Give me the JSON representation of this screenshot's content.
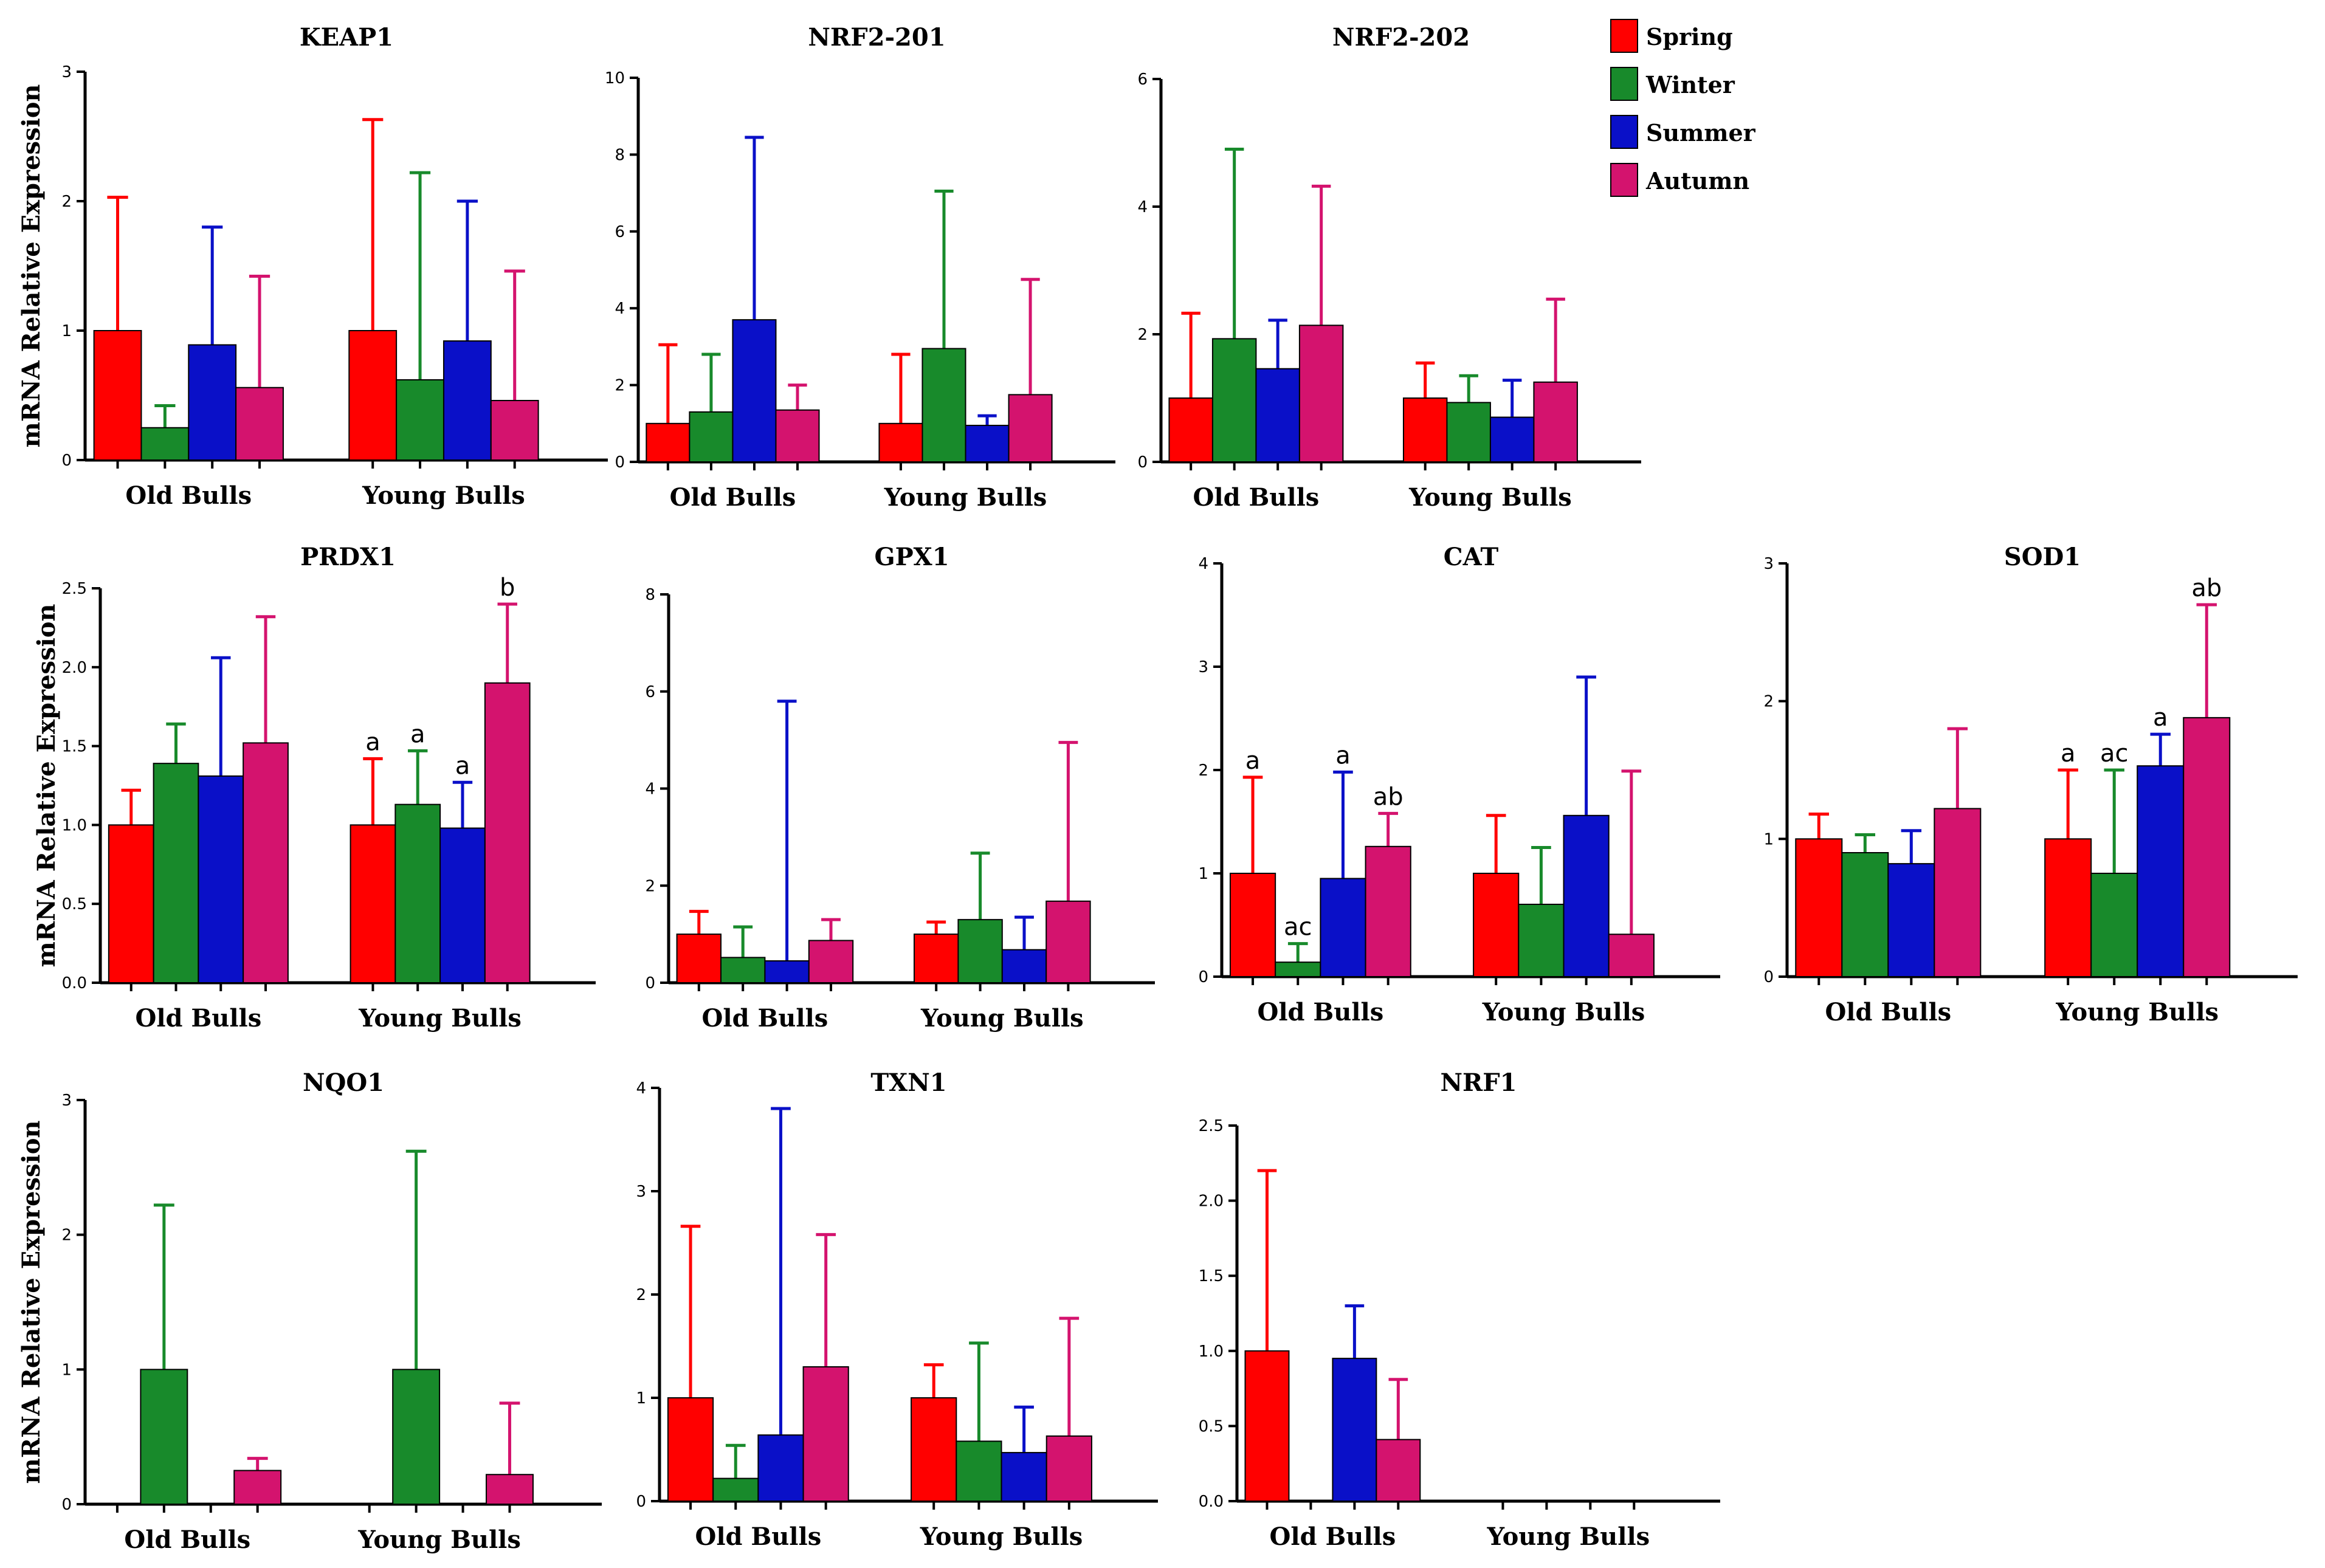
{
  "chart_data": {
    "type": "bar",
    "groups": [
      "Old Bulls",
      "Young Bulls"
    ],
    "legend": [
      {
        "name": "Spring",
        "color": "#ff0000"
      },
      {
        "name": "Winter",
        "color": "#188a2b"
      },
      {
        "name": "Summer",
        "color": "#0a10c8"
      },
      {
        "name": "Autumn",
        "color": "#d4136e"
      }
    ],
    "ylabel": "mRNA Relative Expression",
    "panels": [
      {
        "title": "KEAP1",
        "ylim": [
          0,
          3
        ],
        "ticks": [
          "0",
          "1",
          "2",
          "3"
        ],
        "values": [
          [
            1.0,
            0.25,
            0.89,
            0.56
          ],
          [
            1.0,
            0.62,
            0.92,
            0.46
          ]
        ],
        "errors": [
          [
            2.03,
            0.42,
            1.8,
            1.42
          ],
          [
            2.63,
            2.22,
            2.0,
            1.46
          ]
        ],
        "sig": [
          [
            "",
            "",
            "",
            ""
          ],
          [
            "",
            "",
            "",
            ""
          ]
        ]
      },
      {
        "title": "NRF2-201",
        "ylim": [
          0,
          10
        ],
        "ticks": [
          "0",
          "2",
          "4",
          "6",
          "8",
          "10"
        ],
        "values": [
          [
            1.0,
            1.3,
            3.7,
            1.35
          ],
          [
            1.0,
            2.95,
            0.95,
            1.75
          ]
        ],
        "errors": [
          [
            3.05,
            2.8,
            8.45,
            2.0
          ],
          [
            2.8,
            7.05,
            1.2,
            4.75
          ]
        ],
        "sig": [
          [
            "",
            "",
            "",
            ""
          ],
          [
            "",
            "",
            "",
            ""
          ]
        ]
      },
      {
        "title": "NRF2-202",
        "ylim": [
          0,
          6
        ],
        "ticks": [
          "0",
          "2",
          "4",
          "6"
        ],
        "values": [
          [
            1.0,
            1.93,
            1.46,
            2.14
          ],
          [
            1.0,
            0.93,
            0.7,
            1.25
          ]
        ],
        "errors": [
          [
            2.33,
            4.9,
            2.22,
            4.32
          ],
          [
            1.55,
            1.35,
            1.28,
            2.55
          ]
        ],
        "sig": [
          [
            "",
            "",
            "",
            ""
          ],
          [
            "",
            "",
            "",
            ""
          ]
        ]
      },
      {
        "title": "PRDX1",
        "ylim": [
          0,
          2.5
        ],
        "ticks": [
          "0.0",
          "0.5",
          "1.0",
          "1.5",
          "2.0",
          "2.5"
        ],
        "values": [
          [
            1.0,
            1.39,
            1.31,
            1.52
          ],
          [
            1.0,
            1.13,
            0.98,
            1.9
          ]
        ],
        "errors": [
          [
            1.22,
            1.64,
            2.06,
            2.32
          ],
          [
            1.42,
            1.47,
            1.27,
            2.4
          ]
        ],
        "sig": [
          [
            "",
            "",
            "",
            ""
          ],
          [
            "a",
            "a",
            "a",
            "b"
          ]
        ]
      },
      {
        "title": "GPX1",
        "ylim": [
          0,
          8
        ],
        "ticks": [
          "0",
          "2",
          "4",
          "6",
          "8"
        ],
        "values": [
          [
            1.0,
            0.52,
            0.45,
            0.87
          ],
          [
            1.0,
            1.3,
            0.68,
            1.68
          ]
        ],
        "errors": [
          [
            1.47,
            1.15,
            5.8,
            1.3
          ],
          [
            1.25,
            2.67,
            1.35,
            4.95
          ]
        ],
        "sig": [
          [
            "",
            "",
            "",
            ""
          ],
          [
            "",
            "",
            "",
            ""
          ]
        ]
      },
      {
        "title": "CAT",
        "ylim": [
          0,
          4
        ],
        "ticks": [
          "0",
          "1",
          "2",
          "3",
          "4"
        ],
        "values": [
          [
            1.0,
            0.14,
            0.95,
            1.26
          ],
          [
            1.0,
            0.7,
            1.56,
            0.41
          ]
        ],
        "errors": [
          [
            1.93,
            0.32,
            1.98,
            1.58
          ],
          [
            1.56,
            1.25,
            2.9,
            1.99
          ]
        ],
        "sig": [
          [
            "a",
            "ac",
            "a",
            "ab"
          ],
          [
            "",
            "",
            "",
            ""
          ]
        ]
      },
      {
        "title": "SOD1",
        "ylim": [
          0,
          3
        ],
        "ticks": [
          "0",
          "1",
          "2",
          "3"
        ],
        "values": [
          [
            1.0,
            0.9,
            0.82,
            1.22
          ],
          [
            1.0,
            0.75,
            1.53,
            1.88
          ]
        ],
        "errors": [
          [
            1.18,
            1.03,
            1.06,
            1.8
          ],
          [
            1.5,
            1.5,
            1.76,
            2.7
          ]
        ],
        "sig": [
          [
            "",
            "",
            "",
            ""
          ],
          [
            "a",
            "ac",
            "a",
            "ab"
          ]
        ]
      },
      {
        "title": "NQO1",
        "ylim": [
          0,
          3
        ],
        "ticks": [
          "0",
          "1",
          "2",
          "3"
        ],
        "values": [
          [
            0,
            1.0,
            0,
            0.25
          ],
          [
            0,
            1.0,
            0,
            0.22
          ]
        ],
        "errors": [
          [
            0,
            2.22,
            0,
            0.34
          ],
          [
            0,
            2.62,
            0,
            0.75
          ]
        ],
        "sig": [
          [
            "",
            "",
            "",
            ""
          ],
          [
            "",
            "",
            "",
            ""
          ]
        ]
      },
      {
        "title": "TXN1",
        "ylim": [
          0,
          4
        ],
        "ticks": [
          "0",
          "1",
          "2",
          "3",
          "4"
        ],
        "values": [
          [
            1.0,
            0.22,
            0.64,
            1.3
          ],
          [
            1.0,
            0.58,
            0.47,
            0.63
          ]
        ],
        "errors": [
          [
            2.66,
            0.54,
            3.8,
            2.58
          ],
          [
            1.32,
            1.53,
            0.91,
            1.77
          ]
        ],
        "sig": [
          [
            "",
            "",
            "",
            ""
          ],
          [
            "",
            "",
            "",
            ""
          ]
        ]
      },
      {
        "title": "NRF1",
        "ylim": [
          0,
          2.5
        ],
        "ticks": [
          "0.0",
          "0.5",
          "1.0",
          "1.5",
          "2.0",
          "2.5"
        ],
        "values": [
          [
            1.0,
            0,
            0.95,
            0.41
          ],
          [
            0,
            0,
            0,
            0
          ]
        ],
        "errors": [
          [
            2.2,
            0,
            1.3,
            0.81
          ],
          [
            0,
            0,
            0,
            0
          ]
        ],
        "sig": [
          [
            "",
            "",
            "",
            ""
          ],
          [
            "",
            "",
            "",
            ""
          ]
        ]
      }
    ]
  }
}
